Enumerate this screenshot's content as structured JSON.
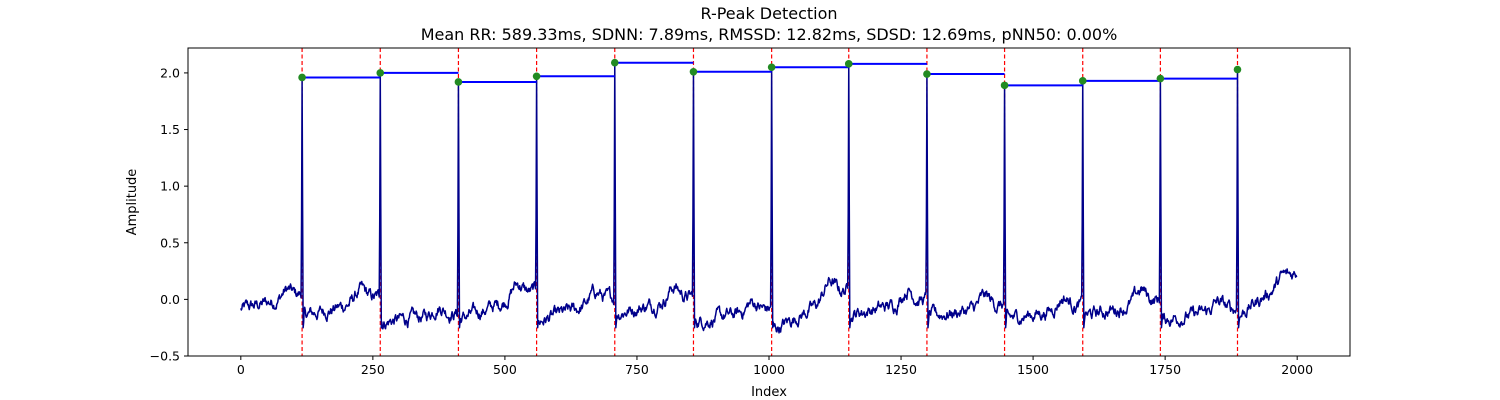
{
  "chart_data": {
    "type": "line",
    "title": "R-Peak Detection",
    "subtitle": "Mean RR: 589.33ms, SDNN: 7.89ms, RMSSD: 12.82ms, SDSD: 12.69ms, pNN50: 0.00%",
    "xlabel": "Index",
    "ylabel": "Amplitude",
    "xlim": [
      -100,
      2100
    ],
    "ylim": [
      -0.5,
      2.22
    ],
    "x_ticks": [
      0,
      250,
      500,
      750,
      1000,
      1250,
      1500,
      1750,
      2000
    ],
    "x_tick_labels": [
      "0",
      "250",
      "500",
      "750",
      "1000",
      "1250",
      "1500",
      "1750",
      "2000"
    ],
    "y_ticks": [
      -0.5,
      0.0,
      0.5,
      1.0,
      1.5,
      2.0
    ],
    "y_tick_labels": [
      "−0.5",
      "0.0",
      "0.5",
      "1.0",
      "1.5",
      "2.0"
    ],
    "grid": false,
    "signal_length": 2000,
    "colors": {
      "signal": "#00008b",
      "peak_marker": "#228b22",
      "peak_line": "#ff0000",
      "rr_segment": "#0000ff"
    },
    "r_peaks": [
      {
        "x": 116,
        "y": 1.96
      },
      {
        "x": 264,
        "y": 2.0
      },
      {
        "x": 412,
        "y": 1.92
      },
      {
        "x": 560,
        "y": 1.97
      },
      {
        "x": 708,
        "y": 2.09
      },
      {
        "x": 857,
        "y": 2.01
      },
      {
        "x": 1005,
        "y": 2.05
      },
      {
        "x": 1151,
        "y": 2.08
      },
      {
        "x": 1299,
        "y": 1.99
      },
      {
        "x": 1446,
        "y": 1.89
      },
      {
        "x": 1594,
        "y": 1.93
      },
      {
        "x": 1741,
        "y": 1.95
      },
      {
        "x": 1887,
        "y": 2.03
      }
    ],
    "baseline_segments": [
      {
        "from": 0,
        "to": 116,
        "start": -0.09,
        "end": 0.05,
        "wave": 0.07
      },
      {
        "from": 116,
        "to": 264,
        "start": -0.15,
        "end": 0.02,
        "wave": 0.1
      },
      {
        "from": 264,
        "to": 412,
        "start": -0.2,
        "end": -0.12,
        "wave": 0.08
      },
      {
        "from": 412,
        "to": 560,
        "start": -0.18,
        "end": 0.08,
        "wave": 0.12
      },
      {
        "from": 560,
        "to": 708,
        "start": -0.2,
        "end": 0.02,
        "wave": 0.1
      },
      {
        "from": 708,
        "to": 857,
        "start": -0.12,
        "end": 0.03,
        "wave": 0.12
      },
      {
        "from": 857,
        "to": 1005,
        "start": -0.2,
        "end": -0.08,
        "wave": 0.08
      },
      {
        "from": 1005,
        "to": 1151,
        "start": -0.28,
        "end": 0.1,
        "wave": 0.15
      },
      {
        "from": 1151,
        "to": 1299,
        "start": -0.13,
        "end": 0.0,
        "wave": 0.12
      },
      {
        "from": 1299,
        "to": 1446,
        "start": -0.15,
        "end": -0.05,
        "wave": 0.1
      },
      {
        "from": 1446,
        "to": 1594,
        "start": -0.18,
        "end": -0.05,
        "wave": 0.1
      },
      {
        "from": 1594,
        "to": 1741,
        "start": -0.15,
        "end": 0.0,
        "wave": 0.12
      },
      {
        "from": 1741,
        "to": 1887,
        "start": -0.18,
        "end": -0.08,
        "wave": 0.08
      },
      {
        "from": 1887,
        "to": 2000,
        "start": -0.15,
        "end": 0.25,
        "wave": 0.05
      }
    ]
  }
}
